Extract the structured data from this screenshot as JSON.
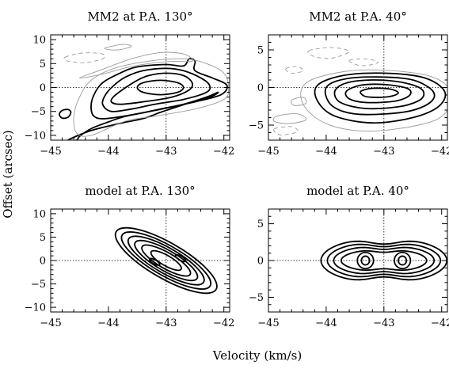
{
  "figure": {
    "xlabel": "Velocity (km/s)",
    "ylabel": "Offset (arcsec)"
  },
  "chart_data": [
    {
      "type": "contour",
      "title": "MM2 at P.A. 130°",
      "xlim": [
        -45,
        -41.9
      ],
      "ylim": [
        -11,
        11
      ],
      "xticks": [
        -45,
        -44,
        -43,
        -42
      ],
      "yticks": [
        -10,
        -5,
        0,
        5,
        10
      ],
      "reference_lines": {
        "x": -43,
        "y": 0
      },
      "contours": [
        {
          "style": "positive",
          "points": [
            [
              -43.1,
              -1.5
            ],
            [
              -42.8,
              -1
            ],
            [
              -42.7,
              0
            ],
            [
              -42.8,
              1
            ],
            [
              -43.1,
              1.5
            ],
            [
              -43.4,
              1
            ],
            [
              -43.5,
              0
            ],
            [
              -43.4,
              -1
            ]
          ]
        },
        {
          "style": "positive",
          "points": [
            [
              -43.8,
              -3.5
            ],
            [
              -43.4,
              -3
            ],
            [
              -42.9,
              -2
            ],
            [
              -42.6,
              -0.5
            ],
            [
              -42.55,
              1
            ],
            [
              -42.7,
              2.5
            ],
            [
              -43,
              3
            ],
            [
              -43.3,
              2.5
            ],
            [
              -43.5,
              1.5
            ],
            [
              -43.7,
              0
            ],
            [
              -43.9,
              -1.8
            ],
            [
              -43.95,
              -3
            ]
          ]
        },
        {
          "style": "positive",
          "points": [
            [
              -43.95,
              -5
            ],
            [
              -43.6,
              -4.5
            ],
            [
              -43.2,
              -3.5
            ],
            [
              -42.7,
              -2.5
            ],
            [
              -42.3,
              -1
            ],
            [
              -42.25,
              0.5
            ],
            [
              -42.4,
              2
            ],
            [
              -42.7,
              3.5
            ],
            [
              -43,
              4
            ],
            [
              -43.4,
              3.5
            ],
            [
              -43.7,
              2.2
            ],
            [
              -43.9,
              0.5
            ],
            [
              -44.05,
              -1.5
            ],
            [
              -44.1,
              -3.5
            ]
          ]
        },
        {
          "style": "positive",
          "points": [
            [
              -44.05,
              -6.5
            ],
            [
              -43.5,
              -5.5
            ],
            [
              -43.1,
              -4.5
            ],
            [
              -42.5,
              -3
            ],
            [
              -42.05,
              -1.5
            ],
            [
              -41.95,
              0.5
            ],
            [
              -42.2,
              2
            ],
            [
              -42.5,
              3.5
            ],
            [
              -42.5,
              5.5
            ],
            [
              -42.6,
              6
            ],
            [
              -42.7,
              4.5
            ],
            [
              -43,
              4.8
            ],
            [
              -43.5,
              4.3
            ],
            [
              -43.8,
              3
            ],
            [
              -44.1,
              1
            ],
            [
              -44.25,
              -1.5
            ],
            [
              -44.3,
              -4
            ],
            [
              -44.25,
              -6
            ]
          ]
        },
        {
          "style": "positive",
          "points": [
            [
              -44.7,
              -11
            ],
            [
              -44.3,
              -9
            ],
            [
              -43.8,
              -7.5
            ],
            [
              -43.4,
              -6.5
            ],
            [
              -43.1,
              -5.2
            ],
            [
              -42.8,
              -4
            ],
            [
              -42.5,
              -2.8
            ],
            [
              -42.2,
              -1.8
            ],
            [
              -42.1,
              -1
            ],
            [
              -42.3,
              -2
            ],
            [
              -42.7,
              -3.5
            ],
            [
              -43.2,
              -4.8
            ],
            [
              -43.7,
              -6
            ],
            [
              -44,
              -7.2
            ],
            [
              -44.3,
              -8.6
            ],
            [
              -44.5,
              -10.2
            ],
            [
              -44.55,
              -11
            ]
          ]
        },
        {
          "style": "positive",
          "points": [
            [
              -44.8,
              -4.8
            ],
            [
              -44.7,
              -4.6
            ],
            [
              -44.65,
              -5.2
            ],
            [
              -44.7,
              -6.2
            ],
            [
              -44.8,
              -6.4
            ],
            [
              -44.85,
              -5.6
            ]
          ]
        },
        {
          "style": "low",
          "points": [
            [
              -44.3,
              -10
            ],
            [
              -43.7,
              -7
            ],
            [
              -43.2,
              -6
            ],
            [
              -42.5,
              -4.5
            ],
            [
              -42,
              -2.5
            ],
            [
              -41.92,
              0
            ],
            [
              -42,
              3
            ],
            [
              -42.3,
              5
            ],
            [
              -42.7,
              6
            ],
            [
              -43.3,
              5.5
            ],
            [
              -43.9,
              4
            ],
            [
              -44.3,
              1.5
            ],
            [
              -44.5,
              -2
            ],
            [
              -44.6,
              -6
            ],
            [
              -44.55,
              -9.5
            ]
          ]
        },
        {
          "style": "low",
          "points": [
            [
              -44.5,
              2
            ],
            [
              -44.1,
              3.8
            ],
            [
              -43.6,
              6
            ],
            [
              -43.1,
              7.3
            ],
            [
              -42.7,
              7
            ],
            [
              -42.55,
              5.5
            ],
            [
              -43,
              5.4
            ],
            [
              -43.6,
              4.4
            ],
            [
              -44.1,
              2.8
            ]
          ]
        },
        {
          "style": "low",
          "points": [
            [
              -44.05,
              8.3
            ],
            [
              -43.75,
              9
            ],
            [
              -43.6,
              8.6
            ],
            [
              -43.8,
              7.9
            ],
            [
              -44,
              7.9
            ]
          ]
        },
        {
          "style": "negative",
          "points": [
            [
              -44.75,
              6.3
            ],
            [
              -44.45,
              7.2
            ],
            [
              -44.1,
              7
            ],
            [
              -44.1,
              6
            ],
            [
              -44.4,
              5.2
            ],
            [
              -44.7,
              5.5
            ]
          ]
        }
      ]
    },
    {
      "type": "contour",
      "title": "MM2 at P.A. 40°",
      "xlim": [
        -45,
        -41.9
      ],
      "ylim": [
        -7,
        7
      ],
      "xticks": [
        -45,
        -44,
        -43,
        -42
      ],
      "yticks": [
        -5,
        0,
        5
      ],
      "reference_lines": {
        "x": -43,
        "y": 0
      },
      "contours": [
        {
          "style": "positive",
          "points": [
            [
              -43.2,
              -1.3
            ],
            [
              -42.9,
              -1.2
            ],
            [
              -42.75,
              -0.7
            ],
            [
              -42.9,
              -0.2
            ],
            [
              -43.2,
              -0.1
            ],
            [
              -43.4,
              -0.5
            ],
            [
              -43.35,
              -1.1
            ]
          ]
        },
        {
          "style": "positive",
          "points": [
            [
              -43.3,
              -2
            ],
            [
              -42.8,
              -1.8
            ],
            [
              -42.55,
              -1
            ],
            [
              -42.6,
              -0.1
            ],
            [
              -43,
              0.4
            ],
            [
              -43.4,
              0.3
            ],
            [
              -43.65,
              -0.5
            ],
            [
              -43.6,
              -1.5
            ]
          ]
        },
        {
          "style": "positive",
          "points": [
            [
              -43.3,
              -2.8
            ],
            [
              -42.7,
              -2.5
            ],
            [
              -42.35,
              -1.5
            ],
            [
              -42.35,
              -0.2
            ],
            [
              -42.7,
              0.7
            ],
            [
              -43.2,
              1
            ],
            [
              -43.65,
              0.6
            ],
            [
              -43.85,
              -0.5
            ],
            [
              -43.75,
              -2
            ]
          ]
        },
        {
          "style": "positive",
          "points": [
            [
              -43.3,
              -3.6
            ],
            [
              -42.6,
              -3.2
            ],
            [
              -42.2,
              -2
            ],
            [
              -42.15,
              -0.5
            ],
            [
              -42.5,
              1
            ],
            [
              -43.1,
              1.4
            ],
            [
              -43.7,
              1.1
            ],
            [
              -44,
              0
            ],
            [
              -43.95,
              -2
            ],
            [
              -43.7,
              -3.2
            ]
          ]
        },
        {
          "style": "positive",
          "points": [
            [
              -43.2,
              -4.7
            ],
            [
              -42.5,
              -4
            ],
            [
              -42.05,
              -2.5
            ],
            [
              -41.95,
              -0.5
            ],
            [
              -42.3,
              1.3
            ],
            [
              -43,
              1.9
            ],
            [
              -43.7,
              1.6
            ],
            [
              -44.15,
              0.3
            ],
            [
              -44.15,
              -1.8
            ],
            [
              -43.85,
              -3.8
            ]
          ]
        },
        {
          "style": "low",
          "points": [
            [
              -43.3,
              -5.8
            ],
            [
              -42.4,
              -5
            ],
            [
              -41.95,
              -3.5
            ],
            [
              -41.85,
              -0.5
            ],
            [
              -42.2,
              1.5
            ],
            [
              -43,
              2.3
            ],
            [
              -43.7,
              2.1
            ],
            [
              -44.35,
              0.6
            ],
            [
              -44.4,
              -2.2
            ],
            [
              -44,
              -4.8
            ]
          ]
        },
        {
          "style": "low",
          "points": [
            [
              -44.6,
              -1.7
            ],
            [
              -44.4,
              -1.3
            ],
            [
              -44.35,
              -2.1
            ],
            [
              -44.55,
              -2.4
            ]
          ]
        },
        {
          "style": "low",
          "points": [
            [
              -44.85,
              -3.8
            ],
            [
              -44.5,
              -3.5
            ],
            [
              -44.35,
              -4.3
            ],
            [
              -44.65,
              -4.8
            ],
            [
              -44.9,
              -4.5
            ]
          ]
        },
        {
          "style": "negative",
          "points": [
            [
              -44.3,
              4.9
            ],
            [
              -43.9,
              5.3
            ],
            [
              -43.6,
              4.8
            ],
            [
              -43.9,
              3.9
            ],
            [
              -44.2,
              4.1
            ]
          ]
        },
        {
          "style": "negative",
          "points": [
            [
              -43.6,
              3.6
            ],
            [
              -43.3,
              3.8
            ],
            [
              -43.1,
              3.3
            ],
            [
              -43.4,
              2.9
            ]
          ]
        },
        {
          "style": "negative",
          "points": [
            [
              -44.7,
              2.5
            ],
            [
              -44.5,
              2.8
            ],
            [
              -44.4,
              2.2
            ],
            [
              -44.6,
              1.9
            ]
          ]
        },
        {
          "style": "negative",
          "points": [
            [
              -44.9,
              -5.5
            ],
            [
              -44.6,
              -5.2
            ],
            [
              -44.5,
              -5.9
            ],
            [
              -44.8,
              -6.3
            ]
          ]
        }
      ]
    },
    {
      "type": "contour",
      "title": "model at P.A. 130°",
      "xlim": [
        -45,
        -41.9
      ],
      "ylim": [
        -11,
        11
      ],
      "xticks": [
        -45,
        -44,
        -43,
        -42
      ],
      "yticks": [
        -10,
        -5,
        0,
        5,
        10
      ],
      "reference_lines": {
        "x": -43,
        "y": 0
      },
      "ellipses": {
        "cx": -43,
        "cy": 0,
        "angle": -30,
        "rx": [
          0.3,
          0.48,
          0.62,
          0.75,
          0.88,
          1.0
        ],
        "ry": [
          1.1,
          1.7,
          2.2,
          2.7,
          3.2,
          3.8
        ],
        "style": "positive"
      }
    },
    {
      "type": "contour",
      "title": "model at P.A. 40°",
      "xlim": [
        -45,
        -41.9
      ],
      "ylim": [
        -7,
        7
      ],
      "xticks": [
        -45,
        -44,
        -43,
        -42
      ],
      "yticks": [
        -5,
        0,
        5
      ],
      "reference_lines": {
        "x": -43,
        "y": 0
      },
      "double_peak": {
        "cx": -43,
        "cy": 0,
        "peak_dx": 0.32,
        "inner": [
          [
            0.07,
            0.6
          ],
          [
            0.14,
            1.1
          ]
        ],
        "outer": [
          [
            0.42,
            1.55
          ],
          [
            0.55,
            2.1
          ],
          [
            0.66,
            2.6
          ],
          [
            0.77,
            3.1
          ]
        ],
        "style": "positive"
      }
    }
  ]
}
